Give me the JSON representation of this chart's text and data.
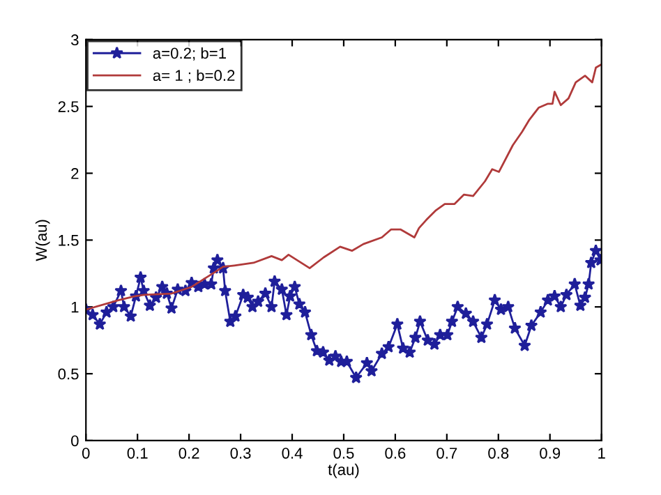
{
  "chart_data": {
    "type": "line",
    "xlabel": "t(au)",
    "ylabel": "W(au)",
    "xlim": [
      0,
      1
    ],
    "ylim": [
      0,
      3
    ],
    "xticks": [
      0,
      0.1,
      0.2,
      0.3,
      0.4,
      0.5,
      0.6,
      0.7,
      0.8,
      0.9,
      1
    ],
    "yticks": [
      0,
      0.5,
      1,
      1.5,
      2,
      2.5,
      3
    ],
    "grid": false,
    "legend": "top left",
    "series": [
      {
        "name": "a=0.2; b=1",
        "color": "#1f1f9a",
        "marker": "star",
        "line_style": "solid",
        "x": [
          0,
          0.013,
          0.027,
          0.04,
          0.053,
          0.068,
          0.074,
          0.087,
          0.097,
          0.106,
          0.112,
          0.124,
          0.136,
          0.148,
          0.157,
          0.166,
          0.178,
          0.193,
          0.205,
          0.218,
          0.23,
          0.243,
          0.248,
          0.255,
          0.266,
          0.27,
          0.28,
          0.29,
          0.305,
          0.314,
          0.323,
          0.334,
          0.348,
          0.36,
          0.366,
          0.38,
          0.389,
          0.396,
          0.405,
          0.414,
          0.425,
          0.437,
          0.448,
          0.46,
          0.472,
          0.484,
          0.495,
          0.506,
          0.524,
          0.545,
          0.554,
          0.574,
          0.587,
          0.604,
          0.615,
          0.628,
          0.639,
          0.648,
          0.663,
          0.676,
          0.687,
          0.701,
          0.71,
          0.721,
          0.737,
          0.751,
          0.767,
          0.778,
          0.793,
          0.805,
          0.819,
          0.832,
          0.851,
          0.864,
          0.882,
          0.896,
          0.909,
          0.921,
          0.932,
          0.948,
          0.959,
          0.968,
          0.975,
          0.98,
          0.989,
          0.998
        ],
        "values": [
          0.98,
          0.94,
          0.87,
          0.96,
          1.0,
          1.12,
          1.0,
          0.93,
          1.08,
          1.22,
          1.12,
          1.01,
          1.07,
          1.15,
          1.1,
          0.99,
          1.13,
          1.12,
          1.18,
          1.15,
          1.17,
          1.17,
          1.29,
          1.35,
          1.29,
          1.12,
          0.89,
          0.93,
          1.09,
          1.07,
          1.0,
          1.04,
          1.1,
          1.0,
          1.19,
          1.13,
          0.94,
          1.08,
          1.15,
          1.02,
          0.96,
          0.79,
          0.67,
          0.66,
          0.6,
          0.63,
          0.59,
          0.59,
          0.47,
          0.58,
          0.52,
          0.65,
          0.7,
          0.87,
          0.69,
          0.66,
          0.77,
          0.89,
          0.75,
          0.72,
          0.79,
          0.79,
          0.89,
          1.0,
          0.95,
          0.89,
          0.77,
          0.87,
          1.05,
          0.98,
          1.0,
          0.84,
          0.71,
          0.86,
          0.96,
          1.05,
          1.08,
          1.0,
          1.09,
          1.17,
          1.01,
          1.07,
          1.17,
          1.33,
          1.42,
          1.35
        ]
      },
      {
        "name": "a= 1 ; b=0.2",
        "color": "#b03a3a",
        "marker": "none",
        "line_style": "solid",
        "x": [
          0,
          0.063,
          0.095,
          0.113,
          0.166,
          0.205,
          0.25,
          0.266,
          0.288,
          0.325,
          0.36,
          0.38,
          0.393,
          0.434,
          0.461,
          0.493,
          0.516,
          0.538,
          0.574,
          0.592,
          0.61,
          0.637,
          0.646,
          0.66,
          0.678,
          0.696,
          0.715,
          0.733,
          0.751,
          0.774,
          0.788,
          0.801,
          0.828,
          0.846,
          0.86,
          0.878,
          0.896,
          0.905,
          0.909,
          0.921,
          0.936,
          0.95,
          0.968,
          0.982,
          0.989,
          0.998
        ],
        "values": [
          0.98,
          1.05,
          1.08,
          1.09,
          1.1,
          1.15,
          1.26,
          1.3,
          1.31,
          1.33,
          1.38,
          1.35,
          1.39,
          1.29,
          1.37,
          1.45,
          1.42,
          1.47,
          1.52,
          1.58,
          1.58,
          1.52,
          1.59,
          1.65,
          1.72,
          1.77,
          1.77,
          1.84,
          1.83,
          1.94,
          2.03,
          2.01,
          2.21,
          2.31,
          2.4,
          2.49,
          2.52,
          2.52,
          2.61,
          2.51,
          2.56,
          2.68,
          2.73,
          2.68,
          2.79,
          2.81
        ]
      }
    ]
  }
}
